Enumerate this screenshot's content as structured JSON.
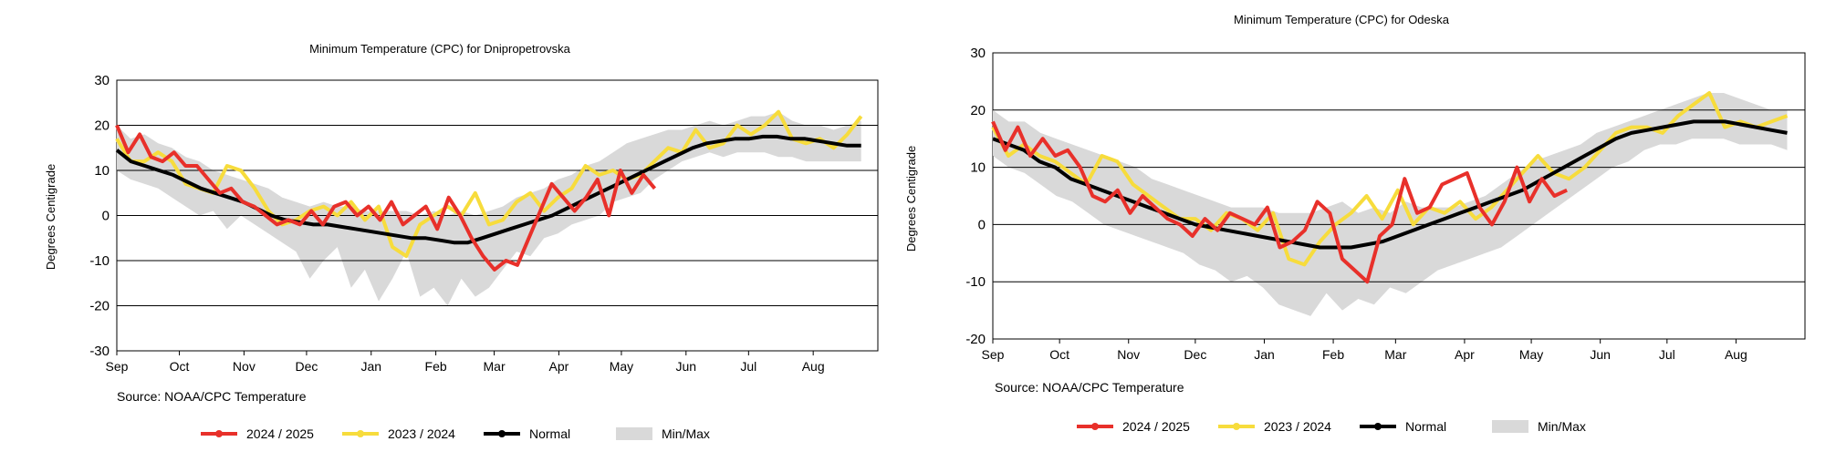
{
  "colors": {
    "cur": "#e8302a",
    "prev": "#f7dc3c",
    "normal": "#000000",
    "minmax": "#d9d9d9",
    "grid": "#000000"
  },
  "chart_data": [
    {
      "type": "line",
      "title": "Minimum Temperature (CPC) for Dnipropetrovska",
      "ylabel": "Degrees Centigrade",
      "xlabel": "",
      "source": "Source: NOAA/CPC Temperature",
      "ylim": [
        -30,
        30
      ],
      "yticks": [
        -30,
        -20,
        -10,
        0,
        10,
        20,
        30
      ],
      "x_ticks": [
        "Sep",
        "Oct",
        "Nov",
        "Dec",
        "Jan",
        "Feb",
        "Mar",
        "Apr",
        "May",
        "Jun",
        "Jul",
        "Aug"
      ],
      "legend": [
        "2024 / 2025",
        "2023 / 2024",
        "Normal",
        "Min/Max"
      ],
      "series": [
        {
          "name": "2024 / 2025",
          "values": [
            20,
            14,
            18,
            13,
            12,
            14,
            11,
            11,
            8,
            5,
            6,
            3,
            2,
            0,
            -2,
            -1,
            -2,
            1,
            -2,
            2,
            3,
            0,
            2,
            -1,
            3,
            -2,
            0,
            2,
            -3,
            4,
            0,
            -5,
            -9,
            -12,
            -10,
            -11,
            -5,
            1,
            7,
            4,
            1,
            4,
            8,
            0,
            10,
            5,
            9,
            6
          ]
        },
        {
          "name": "2023 / 2024",
          "values": [
            17,
            12,
            12,
            14,
            12,
            7,
            6,
            5,
            11,
            10,
            6,
            1,
            -2,
            -1,
            1,
            2,
            0,
            3,
            -1,
            2,
            -7,
            -9,
            -2,
            0,
            2,
            0,
            5,
            -2,
            -1,
            3,
            5,
            1,
            4,
            6,
            11,
            9,
            10,
            8,
            9,
            12,
            15,
            14,
            19,
            15,
            16,
            20,
            18,
            20,
            23,
            17,
            16,
            17,
            15,
            18,
            22
          ]
        },
        {
          "name": "Normal",
          "values": [
            14.5,
            12,
            11,
            10,
            9,
            7.5,
            6,
            5,
            4,
            3,
            1.5,
            0,
            -1,
            -1.5,
            -2,
            -2,
            -2.5,
            -3,
            -3.5,
            -4,
            -4.5,
            -5,
            -5,
            -5.5,
            -6,
            -6,
            -5,
            -4,
            -3,
            -2,
            -1,
            0,
            1.5,
            3,
            4.5,
            6,
            7.5,
            9,
            10.5,
            12,
            13.5,
            15,
            16,
            16.5,
            17,
            17,
            17.5,
            17.5,
            17,
            17,
            16.5,
            16,
            15.5,
            15.5
          ]
        },
        {
          "name": "Min/Max",
          "upper": [
            20,
            17,
            18,
            16,
            15,
            13,
            12,
            10,
            9,
            8,
            7,
            6,
            4,
            3,
            2,
            3,
            2,
            2,
            1,
            1,
            1,
            1,
            0,
            1,
            0,
            1,
            0,
            1,
            2,
            4,
            5,
            6,
            8,
            9,
            11,
            12,
            14,
            16,
            17,
            18,
            19,
            19,
            20,
            21,
            20,
            21,
            22,
            22,
            23,
            21,
            20,
            20,
            19,
            20,
            21
          ],
          "lower": [
            10,
            8,
            7,
            6,
            4,
            2,
            0,
            1,
            -3,
            0,
            -2,
            -4,
            -6,
            -8,
            -14,
            -10,
            -7,
            -16,
            -12,
            -19,
            -14,
            -8,
            -18,
            -16,
            -20,
            -14,
            -18,
            -16,
            -12,
            -8,
            -9,
            -5,
            -4,
            -2,
            -1,
            0,
            3,
            4,
            5,
            8,
            10,
            12,
            13,
            14,
            13,
            14,
            14,
            14,
            13,
            13,
            12,
            12,
            12,
            12,
            12
          ]
        }
      ]
    },
    {
      "type": "line",
      "title": "Minimum Temperature (CPC) for Odeska",
      "ylabel": "Degrees Centigrade",
      "xlabel": "",
      "source": "Source: NOAA/CPC Temperature",
      "ylim": [
        -20,
        30
      ],
      "yticks": [
        -20,
        -10,
        0,
        10,
        20,
        30
      ],
      "x_ticks": [
        "Sep",
        "Oct",
        "Nov",
        "Dec",
        "Jan",
        "Feb",
        "Mar",
        "Apr",
        "May",
        "Jun",
        "Jul",
        "Aug"
      ],
      "legend": [
        "2024 / 2025",
        "2023 / 2024",
        "Normal",
        "Min/Max"
      ],
      "series": [
        {
          "name": "2024 / 2025",
          "values": [
            18,
            13,
            17,
            12,
            15,
            12,
            13,
            10,
            5,
            4,
            6,
            2,
            5,
            3,
            1,
            0,
            -2,
            1,
            -1,
            2,
            1,
            0,
            3,
            -4,
            -3,
            -1,
            4,
            2,
            -6,
            -8,
            -10,
            -2,
            0,
            8,
            2,
            3,
            7,
            8,
            9,
            3,
            0,
            4,
            10,
            4,
            8,
            5,
            6
          ]
        },
        {
          "name": "2023 / 2024",
          "values": [
            17,
            12,
            14,
            12,
            11,
            9,
            7,
            12,
            11,
            7,
            5,
            3,
            1,
            1,
            -1,
            2,
            1,
            -1,
            2,
            -6,
            -7,
            -3,
            0,
            2,
            5,
            1,
            6,
            0,
            3,
            2,
            4,
            1,
            3,
            6,
            9,
            12,
            9,
            8,
            10,
            13,
            16,
            17,
            17,
            16,
            19,
            21,
            23,
            17,
            18,
            17,
            18,
            19
          ]
        },
        {
          "name": "Normal",
          "values": [
            15,
            14,
            13,
            11,
            10,
            8,
            7,
            6,
            5,
            4,
            3,
            2,
            1,
            0,
            -0.5,
            -1,
            -1.5,
            -2,
            -2.5,
            -3,
            -3.5,
            -4,
            -4,
            -4,
            -3.5,
            -3,
            -2,
            -1,
            0,
            1,
            2,
            3,
            4,
            5,
            6,
            7.5,
            9,
            10.5,
            12,
            13.5,
            15,
            16,
            16.5,
            17,
            17.5,
            18,
            18,
            18,
            17.5,
            17,
            16.5,
            16
          ]
        },
        {
          "name": "Min/Max",
          "upper": [
            20,
            18,
            18,
            16,
            15,
            14,
            13,
            12,
            11,
            10,
            8,
            7,
            6,
            5,
            4,
            3,
            3,
            3,
            2,
            2,
            2,
            3,
            4,
            2,
            3,
            2,
            4,
            3,
            3,
            3,
            4,
            5,
            7,
            9,
            11,
            12,
            13,
            14,
            16,
            17,
            18,
            19,
            20,
            21,
            22,
            23,
            23,
            22,
            21,
            20,
            20
          ],
          "lower": [
            12,
            10,
            9,
            7,
            5,
            4,
            2,
            0,
            -1,
            -2,
            -3,
            -4,
            -5,
            -7,
            -8,
            -10,
            -9,
            -11,
            -14,
            -15,
            -16,
            -12,
            -15,
            -13,
            -14,
            -11,
            -12,
            -10,
            -8,
            -7,
            -6,
            -5,
            -4,
            -2,
            0,
            2,
            4,
            6,
            8,
            10,
            11,
            13,
            14,
            14,
            15,
            15,
            15,
            14,
            14,
            14,
            13
          ]
        }
      ]
    }
  ]
}
